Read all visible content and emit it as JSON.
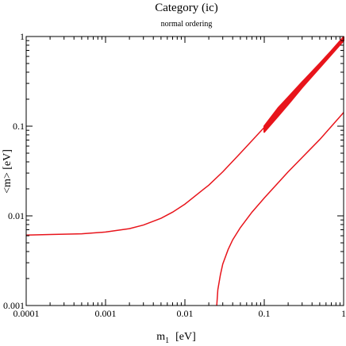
{
  "chart_data": {
    "type": "line",
    "title": "Category (ic)",
    "subtitle": "normal ordering",
    "xlabel": "m",
    "xlabel_sub": "1",
    "xlabel_unit": "[eV]",
    "ylabel": "<m>   [eV]",
    "xscale": "log",
    "yscale": "log",
    "xlim": [
      0.0001,
      1
    ],
    "ylim": [
      0.001,
      1
    ],
    "x_ticks": [
      0.0001,
      0.001,
      0.01,
      0.1,
      1
    ],
    "x_tick_labels": [
      "0.0001",
      "0.001",
      "0.01",
      "0.1",
      "1"
    ],
    "y_ticks": [
      0.001,
      0.01,
      0.1,
      1
    ],
    "y_tick_labels": [
      "0.001",
      "0.01",
      "0.1",
      "1"
    ],
    "grid": false,
    "line_color": "#e8141b",
    "series": [
      {
        "kind": "line",
        "x": [
          0.0001,
          0.0002,
          0.0005,
          0.001,
          0.002,
          0.003,
          0.005,
          0.007,
          0.01,
          0.015,
          0.02,
          0.03,
          0.05,
          0.07,
          0.1,
          0.2,
          0.5,
          1
        ],
        "y": [
          0.0061,
          0.0062,
          0.0063,
          0.0066,
          0.0072,
          0.0079,
          0.0094,
          0.011,
          0.0135,
          0.018,
          0.022,
          0.031,
          0.05,
          0.069,
          0.097,
          0.19,
          0.48,
          0.96
        ]
      },
      {
        "kind": "line",
        "x": [
          0.0252,
          0.026,
          0.028,
          0.03,
          0.035,
          0.04,
          0.05,
          0.07,
          0.1,
          0.2,
          0.5,
          1
        ],
        "y": [
          0.001,
          0.0015,
          0.0022,
          0.0029,
          0.0042,
          0.0054,
          0.0074,
          0.011,
          0.0158,
          0.031,
          0.071,
          0.142
        ]
      },
      {
        "kind": "band",
        "x": [
          0.1,
          0.15,
          0.2,
          0.3,
          0.5,
          0.7,
          1
        ],
        "y_low": [
          0.086,
          0.13,
          0.175,
          0.27,
          0.45,
          0.63,
          0.9
        ],
        "y_high": [
          0.1,
          0.16,
          0.21,
          0.31,
          0.5,
          0.69,
          0.99
        ]
      }
    ]
  }
}
